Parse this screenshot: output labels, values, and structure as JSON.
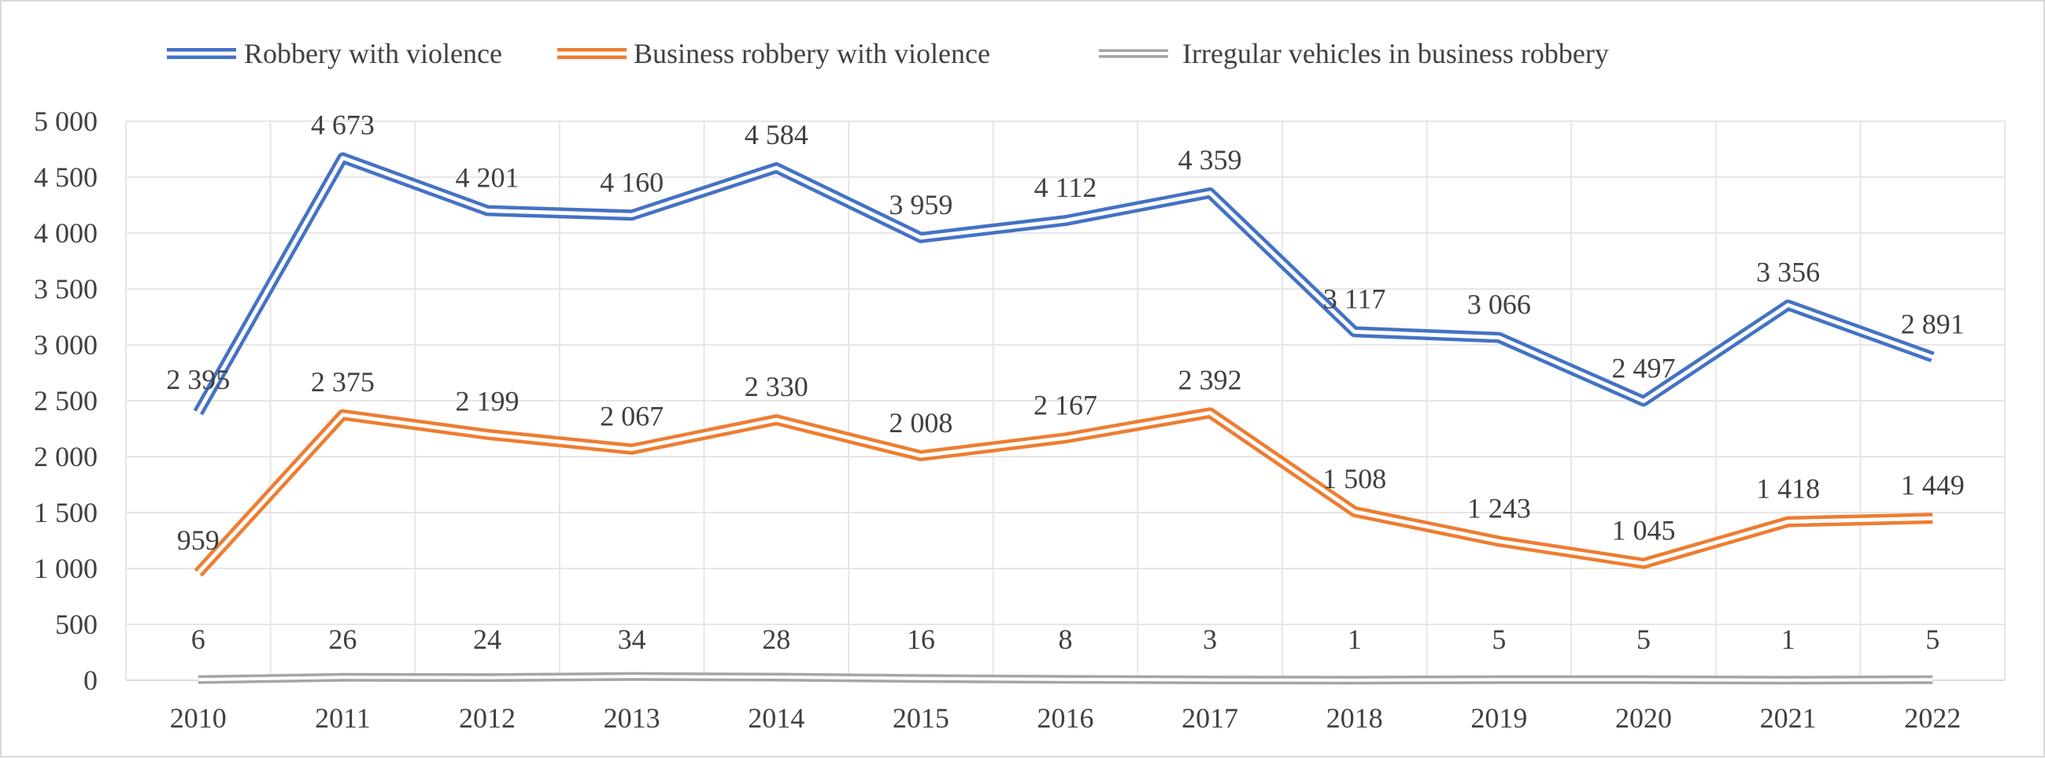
{
  "chart_data": {
    "type": "line",
    "title": "",
    "xlabel": "",
    "ylabel": "",
    "categories": [
      "2010",
      "2011",
      "2012",
      "2013",
      "2014",
      "2015",
      "2016",
      "2017",
      "2018",
      "2019",
      "2020",
      "2021",
      "2022"
    ],
    "ylim": [
      0,
      5000
    ],
    "yticks": [
      0,
      500,
      1000,
      1500,
      2000,
      2500,
      3000,
      3500,
      4000,
      4500,
      5000
    ],
    "ytick_labels": [
      "0",
      "500",
      "1 000",
      "1 500",
      "2 000",
      "2 500",
      "3 000",
      "3 500",
      "4 000",
      "4 500",
      "5 000"
    ],
    "grid": true,
    "legend_position": "top",
    "series": [
      {
        "name": "Robbery with violence",
        "color": "#4472c4",
        "values": [
          2395,
          4673,
          4201,
          4160,
          4584,
          3959,
          4112,
          4359,
          3117,
          3066,
          2497,
          3356,
          2891
        ],
        "labels": [
          "2 395",
          "4 673",
          "4 201",
          "4 160",
          "4 584",
          "3 959",
          "4 112",
          "4 359",
          "3 117",
          "3 066",
          "2 497",
          "3 356",
          "2 891"
        ]
      },
      {
        "name": "Business robbery with violence",
        "color": "#ed7d31",
        "values": [
          959,
          2375,
          2199,
          2067,
          2330,
          2008,
          2167,
          2392,
          1508,
          1243,
          1045,
          1418,
          1449
        ],
        "labels": [
          "959",
          "2 375",
          "2 199",
          "2 067",
          "2 330",
          "2 008",
          "2 167",
          "2 392",
          "1 508",
          "1 243",
          "1 045",
          "1 418",
          "1 449"
        ]
      },
      {
        "name": "Irregular vehicles in business robbery",
        "color": "#a5a5a5",
        "values": [
          6,
          26,
          24,
          34,
          28,
          16,
          8,
          3,
          1,
          5,
          5,
          1,
          5
        ],
        "labels": [
          "6",
          "26",
          "24",
          "34",
          "28",
          "16",
          "8",
          "3",
          "1",
          "5",
          "5",
          "1",
          "5"
        ]
      }
    ]
  }
}
